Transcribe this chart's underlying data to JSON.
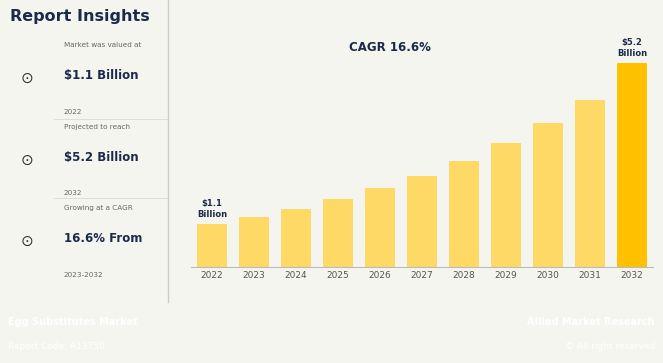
{
  "title": "Report Insights",
  "years": [
    2022,
    2023,
    2024,
    2025,
    2026,
    2027,
    2028,
    2029,
    2030,
    2031,
    2032
  ],
  "values": [
    1.1,
    1.28,
    1.49,
    1.73,
    2.01,
    2.34,
    2.72,
    3.16,
    3.67,
    4.27,
    5.2
  ],
  "bar_color_normal": "#FFD966",
  "bar_color_last": "#FFC000",
  "cagr_text": "CAGR 16.6%",
  "first_bar_label": "$1.1\nBillion",
  "last_bar_label": "$5.2\nBillion",
  "bg_color": "#F5F5F0",
  "chart_bg": "#F5F5F0",
  "left_panel_bg": "#FFFFFF",
  "footer_bg": "#1B2A4A",
  "footer_left_bold": "Egg Substitutes Market",
  "footer_left_normal": "Report Code: A13750",
  "footer_right_bold": "Allied Market Research",
  "footer_right_normal": "© All right reserved",
  "stat1_label": "Market was valued at",
  "stat1_value": "$1.1 Billion",
  "stat1_year": "2022",
  "stat2_label": "Projected to reach",
  "stat2_value": "$5.2 Billion",
  "stat2_year": "2032",
  "stat3_label": "Growing at a CAGR",
  "stat3_value": "16.6% From",
  "stat3_year": "2023-2032",
  "title_color": "#1B2A4A",
  "stat_value_color": "#1B2A4A",
  "stat_label_color": "#666666",
  "cagr_color": "#1B2A4A",
  "ylim": [
    0,
    6.2
  ],
  "divider_color": "#DDDDDD"
}
